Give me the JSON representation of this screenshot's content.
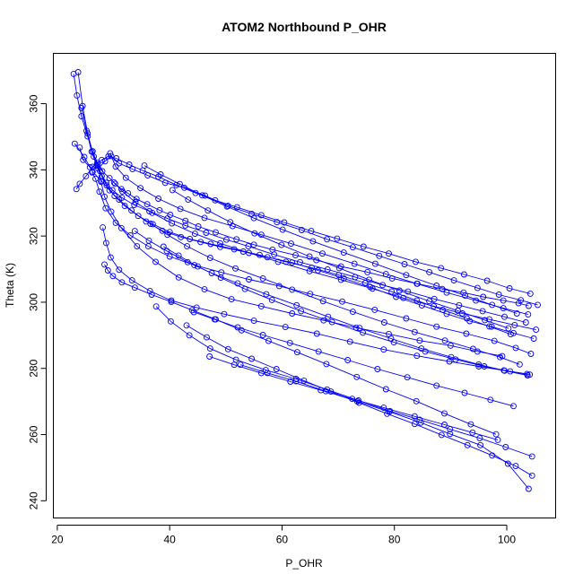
{
  "chart_data": {
    "type": "line",
    "title": "ATOM2 Northbound P_OHR",
    "xlabel": "P_OHR",
    "ylabel": "Theta (K)",
    "xlim": [
      19.3,
      108.7
    ],
    "ylim": [
      234.8,
      375.2
    ],
    "xticks": [
      20,
      40,
      60,
      80,
      100
    ],
    "yticks": [
      240,
      260,
      280,
      300,
      320,
      340,
      360
    ],
    "grid": false,
    "legend": "none",
    "color": "#0000ff",
    "series": [
      {
        "x": [
          22.9,
          23.5,
          24.3,
          25.4,
          26.3,
          27.1,
          28.0,
          29.3,
          30.3,
          31.4,
          32.6,
          34.1,
          36.0,
          38.2,
          40.1,
          42.8,
          45.1,
          48.2,
          51.9,
          55.0,
          58.3,
          62.4,
          66.1,
          70.5,
          75.2,
          79.6,
          84.1,
          88.5,
          92.3,
          95.8,
          99.4,
          102.1,
          103.9
        ],
        "y": [
          369.0,
          362.5,
          356.2,
          350.1,
          345.6,
          342.1,
          339.6,
          337.5,
          335.8,
          334.2,
          332.9,
          331.2,
          329.6,
          327.8,
          326.4,
          324.6,
          322.9,
          321.1,
          319.0,
          317.4,
          315.9,
          314.2,
          312.7,
          310.8,
          309.1,
          307.2,
          305.6,
          304.0,
          302.9,
          301.6,
          300.5,
          299.7,
          298.9
        ]
      },
      {
        "x": [
          23.7,
          24.5,
          25.4,
          26.5,
          27.6,
          28.7,
          29.8,
          31.5,
          33.7,
          36.4,
          39.6,
          42.8,
          46.5,
          50.1,
          54.0,
          58.6,
          63.2,
          68.1,
          73.0,
          77.9,
          82.4,
          87.1,
          91.5,
          95.7,
          99.6,
          103.4
        ],
        "y": [
          369.5,
          359.3,
          351.0,
          344.0,
          339.6,
          336.1,
          333.9,
          331.6,
          329.4,
          327.5,
          325.3,
          323.2,
          321.0,
          318.9,
          316.9,
          314.4,
          312.1,
          309.9,
          307.6,
          305.2,
          303.2,
          301.0,
          299.1,
          297.3,
          295.6,
          293.9
        ]
      },
      {
        "x": [
          23.4,
          24.0,
          25.1,
          26.3,
          27.9,
          29.1,
          30.5,
          32.8,
          35.2,
          38.0,
          41.2,
          44.6,
          48.1,
          52.0,
          56.3,
          60.4,
          65.2,
          69.8,
          74.5,
          79.0,
          83.8,
          88.3,
          92.4,
          96.5,
          100.5,
          104.2
        ],
        "y": [
          334.2,
          335.8,
          338.1,
          340.9,
          343.0,
          344.1,
          343.5,
          341.6,
          339.8,
          337.9,
          335.4,
          333.0,
          330.8,
          328.7,
          326.3,
          324.1,
          321.5,
          319.2,
          316.8,
          314.7,
          312.2,
          310.3,
          308.4,
          306.5,
          304.2,
          302.6
        ]
      },
      {
        "x": [
          24.0,
          24.6,
          25.8,
          27.3,
          28.5,
          29.6,
          31.0,
          33.4,
          36.1,
          39.2,
          42.6,
          46.3,
          50.4,
          54.6,
          59.1,
          63.5,
          68.0,
          72.6,
          77.3,
          81.8,
          86.2,
          90.6,
          94.8,
          98.6,
          102.5,
          105.5
        ],
        "y": [
          346.7,
          343.0,
          340.8,
          340.4,
          342.6,
          344.2,
          342.0,
          340.2,
          338.3,
          336.1,
          334.6,
          332.2,
          329.1,
          326.7,
          324.2,
          321.8,
          319.0,
          316.6,
          314.0,
          311.5,
          309.1,
          306.6,
          304.3,
          302.3,
          300.6,
          299.2
        ]
      },
      {
        "x": [
          23.1,
          24.8,
          26.3,
          27.9,
          29.3,
          31.0,
          33.2,
          35.8,
          38.7,
          42.0,
          45.5,
          49.0,
          53.1,
          57.4,
          61.8,
          66.4,
          71.0,
          75.7,
          80.3,
          84.9,
          89.3,
          93.4,
          97.3,
          101.2,
          104.8
        ],
        "y": [
          347.9,
          343.9,
          339.4,
          336.6,
          333.8,
          331.0,
          327.7,
          324.4,
          321.6,
          319.7,
          318.2,
          316.7,
          315.3,
          313.6,
          312.0,
          309.6,
          307.2,
          304.6,
          301.6,
          299.0,
          296.5,
          294.3,
          292.6,
          290.7,
          289.0
        ]
      },
      {
        "x": [
          24.3,
          25.2,
          26.1,
          27.0,
          27.9,
          28.8,
          30.2,
          32.0,
          34.4,
          37.0,
          40.0,
          43.6,
          47.3,
          51.5,
          56.0,
          60.7,
          65.3,
          70.1,
          74.8,
          79.5,
          84.0,
          88.6,
          92.9,
          96.9,
          100.7
        ],
        "y": [
          358.7,
          351.8,
          345.5,
          341.3,
          338.1,
          335.3,
          332.1,
          329.1,
          326.1,
          323.6,
          321.2,
          319.1,
          317.6,
          316.0,
          314.3,
          312.2,
          310.4,
          308.2,
          305.8,
          303.2,
          300.5,
          297.7,
          295.1,
          292.7,
          290.3
        ]
      },
      {
        "x": [
          27.2,
          27.8,
          28.4,
          29.6,
          31.4,
          34.2,
          37.5,
          41.6,
          46.2,
          51.0,
          56.3,
          61.8,
          67.4,
          73.2,
          79.0,
          84.5,
          90.0,
          94.8,
          99.2
        ],
        "y": [
          341.6,
          336.4,
          331.9,
          327.4,
          322.4,
          316.9,
          312.2,
          307.5,
          303.9,
          300.9,
          298.8,
          296.6,
          294.5,
          292.3,
          290.4,
          288.4,
          286.9,
          285.1,
          283.7
        ]
      },
      {
        "x": [
          28.1,
          28.7,
          29.5,
          31.0,
          33.3,
          36.5,
          40.3,
          44.8,
          49.7,
          55.0,
          60.6,
          66.2,
          72.1,
          78.1,
          84.0,
          89.8,
          95.0,
          99.5,
          103.6
        ],
        "y": [
          322.6,
          317.9,
          313.5,
          309.8,
          306.6,
          303.4,
          300.5,
          298.4,
          296.4,
          294.4,
          292.5,
          290.5,
          288.1,
          285.7,
          283.8,
          282.1,
          280.6,
          279.4,
          278.3
        ]
      },
      {
        "x": [
          28.4,
          29.0,
          29.9,
          31.5,
          33.8,
          36.8,
          40.3,
          44.0,
          48.2,
          52.8,
          57.6,
          62.7,
          67.9,
          73.3,
          78.5,
          83.9,
          88.9,
          93.6,
          98.1
        ],
        "y": [
          311.4,
          309.6,
          307.9,
          306.0,
          304.4,
          302.3,
          300.1,
          297.6,
          294.8,
          291.5,
          288.3,
          284.9,
          281.3,
          277.4,
          273.7,
          270.1,
          266.4,
          263.1,
          260.1
        ]
      },
      {
        "x": [
          37.6,
          40.2,
          43.5,
          47.2,
          51.8,
          57.1,
          62.5,
          68.0,
          73.6,
          79.2,
          84.5,
          89.9,
          95.2,
          99.8,
          104.5
        ],
        "y": [
          298.7,
          294.2,
          290.0,
          286.0,
          282.6,
          279.5,
          276.8,
          273.6,
          270.3,
          267.1,
          264.5,
          261.6,
          258.9,
          256.2,
          253.4
        ]
      },
      {
        "x": [
          43.0,
          46.6,
          50.4,
          54.6,
          59.0,
          63.9,
          68.7,
          73.7,
          78.7,
          83.6,
          88.4,
          93.0,
          97.4,
          101.6,
          104.5
        ],
        "y": [
          293.0,
          289.4,
          285.8,
          282.9,
          279.8,
          276.3,
          273.0,
          269.6,
          266.3,
          263.2,
          259.9,
          256.8,
          253.7,
          250.5,
          247.6
        ]
      },
      {
        "x": [
          52.6,
          57.4,
          62.5,
          67.8,
          73.4,
          79.1,
          84.7,
          89.9,
          95.3,
          100.2,
          103.9
        ],
        "y": [
          281.1,
          278.6,
          276.1,
          273.1,
          270.0,
          266.9,
          263.6,
          260.2,
          256.8,
          251.2,
          243.6
        ]
      },
      {
        "x": [
          26.2,
          26.8,
          27.5,
          28.6,
          30.4,
          33.0,
          36.2,
          40.0,
          44.4,
          49.2,
          54.1,
          59.5,
          65.0,
          70.7,
          76.5,
          82.1,
          87.5,
          92.8,
          97.8,
          101.6,
          104.3
        ],
        "y": [
          339.2,
          337.3,
          333.4,
          328.4,
          324.0,
          320.2,
          316.9,
          313.8,
          311.2,
          309.0,
          306.9,
          304.9,
          302.5,
          300.2,
          297.7,
          295.1,
          292.6,
          290.5,
          288.3,
          286.2,
          284.4
        ]
      },
      {
        "x": [
          29.4,
          30.4,
          32.2,
          34.8,
          38.0,
          41.9,
          46.2,
          51.2,
          56.3,
          61.6,
          67.2,
          72.9,
          78.5,
          84.0,
          89.3,
          94.5,
          99.4,
          103.8
        ],
        "y": [
          345.0,
          341.0,
          337.6,
          334.5,
          331.3,
          328.2,
          325.5,
          323.0,
          320.4,
          317.7,
          314.7,
          311.6,
          308.5,
          305.6,
          302.9,
          300.5,
          298.2,
          296.3
        ]
      },
      {
        "x": [
          30.1,
          31.6,
          33.9,
          36.9,
          40.4,
          44.5,
          49.0,
          54.1,
          59.3,
          64.9,
          70.5,
          76.1,
          81.6,
          87.0,
          92.1,
          96.9,
          101.4,
          105.2
        ],
        "y": [
          336.2,
          333.5,
          330.2,
          327.0,
          323.8,
          320.7,
          317.8,
          314.9,
          312.2,
          309.4,
          306.8,
          304.1,
          301.3,
          298.8,
          296.6,
          294.8,
          293.1,
          291.7
        ]
      },
      {
        "x": [
          36.6,
          39.6,
          43.1,
          47.2,
          51.7,
          56.6,
          61.8,
          67.3,
          72.6,
          78.2,
          83.6,
          89.0,
          94.0,
          98.8,
          102.3
        ],
        "y": [
          323.7,
          320.4,
          316.9,
          313.4,
          310.2,
          307.2,
          303.8,
          300.3,
          297.1,
          293.9,
          291.0,
          288.4,
          285.9,
          283.4,
          281.2
        ]
      },
      {
        "x": [
          38.9,
          41.6,
          45.0,
          49.1,
          53.4,
          58.2,
          63.4,
          68.9,
          74.4,
          79.9,
          85.5,
          90.9,
          96.0,
          100.6,
          104.1
        ],
        "y": [
          316.8,
          314.1,
          310.8,
          307.4,
          304.0,
          300.7,
          297.3,
          294.0,
          290.8,
          287.9,
          285.1,
          282.7,
          280.6,
          279.1,
          278.1
        ]
      },
      {
        "x": [
          33.8,
          36.3,
          39.5,
          43.2,
          47.5,
          52.1,
          57.2,
          62.6,
          68.2,
          73.8,
          79.4,
          84.8,
          90.1,
          95.0,
          99.6,
          103.7
        ],
        "y": [
          321.5,
          318.6,
          315.5,
          312.1,
          308.8,
          305.7,
          302.4,
          299.1,
          295.6,
          292.2,
          289.0,
          286.0,
          283.4,
          281.2,
          279.3,
          277.9
        ]
      },
      {
        "x": [
          35.5,
          38.4,
          41.8,
          45.8,
          50.2,
          55.0,
          60.1,
          65.5,
          71.0,
          76.6,
          82.1,
          87.5,
          92.6,
          97.4,
          101.8
        ],
        "y": [
          341.3,
          338.6,
          335.7,
          332.3,
          328.9,
          325.4,
          321.9,
          318.4,
          315.0,
          311.6,
          308.2,
          305.0,
          302.0,
          299.2,
          296.6
        ]
      },
      {
        "x": [
          40.5,
          43.3,
          46.8,
          50.8,
          55.1,
          59.9,
          64.9,
          70.2,
          75.5,
          80.9,
          86.2,
          91.3,
          96.1,
          100.3
        ],
        "y": [
          333.9,
          331.0,
          327.7,
          324.2,
          320.8,
          317.3,
          313.8,
          310.3,
          306.8,
          303.5,
          300.3,
          297.4,
          294.6,
          292.1
        ]
      },
      {
        "x": [
          44.3,
          48.0,
          52.1,
          56.6,
          61.4,
          66.5,
          71.7,
          77.0,
          82.3,
          87.5,
          92.5,
          97.1,
          101.2
        ],
        "y": [
          297.0,
          294.8,
          292.4,
          290.1,
          287.7,
          285.1,
          282.5,
          279.8,
          277.3,
          274.8,
          272.6,
          270.5,
          268.6
        ]
      },
      {
        "x": [
          47.1,
          51.5,
          56.3,
          61.5,
          66.9,
          72.5,
          78.1,
          83.6,
          88.9,
          93.9,
          98.4
        ],
        "y": [
          283.6,
          281.1,
          278.6,
          276.0,
          273.4,
          270.8,
          268.1,
          265.5,
          263.0,
          260.6,
          258.4
        ]
      }
    ]
  }
}
